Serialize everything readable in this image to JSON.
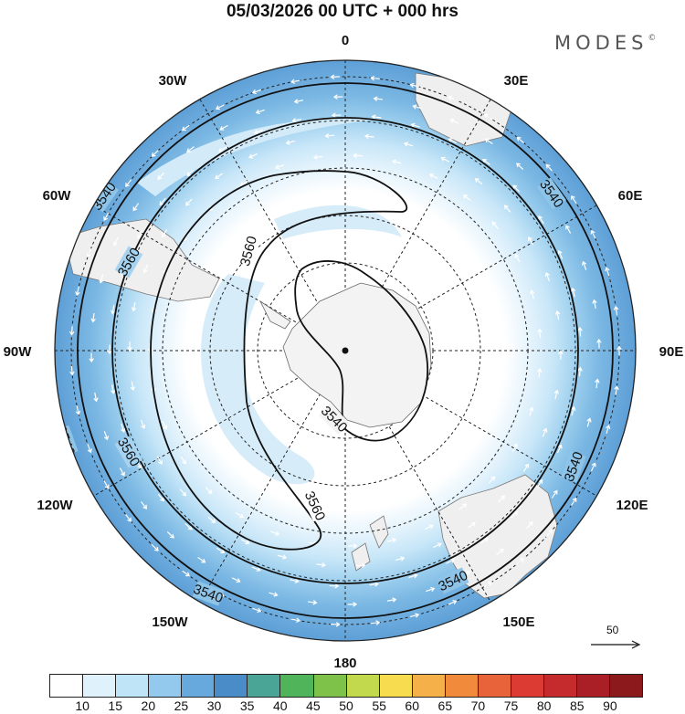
{
  "title": "05/03/2026  00 UTC  + 000 hrs",
  "brand": {
    "name": "MODES",
    "mark": "©"
  },
  "longitude_labels": {
    "0": "0",
    "30E": "30E",
    "60E": "60E",
    "90E": "90E",
    "120E": "120E",
    "150E": "150E",
    "180": "180",
    "150W": "150W",
    "120W": "120W",
    "90W": "90W",
    "60W": "60W",
    "30W": "30W"
  },
  "contour_labels": [
    "3540",
    "3560"
  ],
  "reference_vector": {
    "value": "50"
  },
  "colorbar": {
    "colors": [
      "#ffffff",
      "#dff1fb",
      "#bfe3f7",
      "#93c9ec",
      "#68a9dd",
      "#4a8cc7",
      "#4aa597",
      "#4fb45a",
      "#7ec24a",
      "#c2d94e",
      "#f7dc50",
      "#f6b04a",
      "#f18a3b",
      "#e8633a",
      "#dc3b34",
      "#c52a2c",
      "#a91f25",
      "#8c1a1d"
    ],
    "ticks": [
      "10",
      "15",
      "20",
      "25",
      "30",
      "35",
      "40",
      "45",
      "50",
      "55",
      "60",
      "65",
      "70",
      "75",
      "80",
      "85",
      "90"
    ]
  }
}
